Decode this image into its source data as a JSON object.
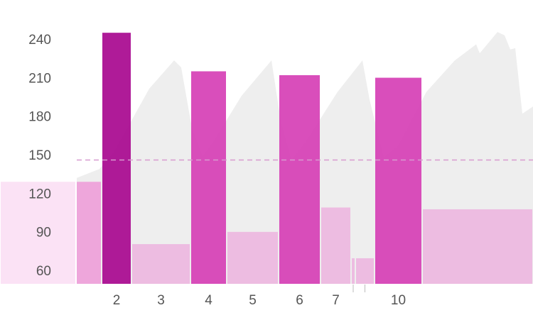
{
  "chart_data": {
    "type": "bar",
    "categories": [
      null,
      null,
      "2",
      "3",
      "4",
      "5",
      "6",
      "7",
      null,
      null,
      "10",
      null
    ],
    "bins": [
      0,
      107,
      143,
      185,
      268,
      319,
      392,
      451,
      494,
      500,
      527,
      594,
      750
    ],
    "values": [
      130,
      130,
      246,
      81.5,
      216,
      91,
      213,
      110,
      70.5,
      70.5,
      211,
      108.6
    ],
    "colors": [
      "#fbe0f4",
      "#ee9fd9",
      "#a8088f",
      "#edb7e0",
      "#d63fb5",
      "#edb7e0",
      "#d63fb5",
      "#edb7e0",
      "#edb7e0",
      "#edb7e0",
      "#d63fb5",
      "#edb7e0"
    ],
    "area": {
      "color": "#eeeeee",
      "x": [
        108,
        140,
        160,
        185,
        210,
        245,
        255,
        270,
        285,
        300,
        340,
        382,
        395,
        410,
        430,
        475,
        510,
        520,
        540,
        560,
        600,
        640,
        670,
        675,
        700,
        710,
        718,
        725,
        735,
        750
      ],
      "values": [
        133,
        140,
        153,
        177.6,
        202.5,
        224.5,
        219,
        172,
        150,
        161,
        197,
        224.5,
        177.6,
        147,
        161,
        200,
        224.5,
        194,
        149,
        158,
        200,
        224.5,
        237,
        230,
        246.6,
        244,
        233,
        234,
        183,
        188.6
      ]
    },
    "reference_line": {
      "value": 147,
      "x": [
        108,
        750
      ],
      "color": "#d89ad0"
    },
    "xlim": [
      0,
      750
    ],
    "ylim": [
      50.6,
      271.5
    ],
    "yticks": [
      60,
      90,
      120,
      150,
      180,
      210,
      240
    ]
  }
}
